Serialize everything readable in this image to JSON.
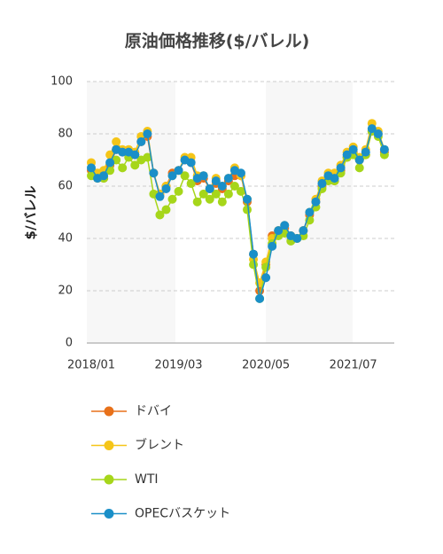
{
  "chart_data": {
    "type": "line",
    "title": "原油価格推移($/バレル)",
    "y_label": "$/バレル",
    "categories": [
      "2018/01",
      null,
      null,
      null,
      null,
      null,
      null,
      null,
      null,
      null,
      null,
      null,
      null,
      null,
      "2019/03",
      null,
      null,
      null,
      null,
      null,
      null,
      null,
      null,
      null,
      null,
      null,
      null,
      null,
      "2020/05",
      null,
      null,
      null,
      null,
      null,
      null,
      null,
      null,
      null,
      null,
      null,
      null,
      null,
      "2021/07",
      null,
      null,
      null,
      null,
      null
    ],
    "series": [
      {
        "name": "ドバイ",
        "color": "#e8711a",
        "values": [
          66,
          63,
          63,
          68,
          74,
          73,
          73,
          72,
          77,
          79,
          65,
          57,
          60,
          65,
          66,
          70,
          69,
          62,
          63,
          59,
          61,
          59,
          62,
          64,
          64,
          54,
          34,
          20,
          30,
          41,
          43,
          44,
          41,
          40,
          43,
          49,
          54,
          60,
          64,
          62,
          66,
          71,
          73,
          70,
          72,
          81,
          80,
          73
        ]
      },
      {
        "name": "ブレント",
        "color": "#f5c518",
        "values": [
          69,
          65,
          66,
          72,
          77,
          74,
          74,
          73,
          79,
          81,
          65,
          57,
          60,
          64,
          66,
          71,
          71,
          64,
          64,
          59,
          63,
          60,
          63,
          67,
          64,
          55,
          32,
          23,
          31,
          40,
          43,
          45,
          41,
          40,
          43,
          50,
          55,
          62,
          65,
          65,
          68,
          73,
          75,
          71,
          74,
          84,
          81,
          74
        ]
      },
      {
        "name": "WTI",
        "color": "#a6d61a",
        "values": [
          64,
          63,
          63,
          66,
          70,
          67,
          71,
          68,
          70,
          71,
          57,
          49,
          51,
          55,
          58,
          64,
          61,
          54,
          57,
          55,
          57,
          54,
          57,
          60,
          58,
          51,
          30,
          17,
          29,
          38,
          41,
          42,
          39,
          40,
          41,
          47,
          52,
          59,
          62,
          62,
          65,
          71,
          72,
          67,
          72,
          81,
          79,
          72
        ]
      },
      {
        "name": "OPECバスケット",
        "color": "#1a8fc8",
        "values": [
          67,
          63,
          64,
          69,
          74,
          73,
          73,
          72,
          77,
          80,
          65,
          56,
          59,
          64,
          66,
          70,
          69,
          63,
          64,
          59,
          62,
          60,
          63,
          66,
          65,
          55,
          34,
          17,
          25,
          37,
          43,
          45,
          41,
          40,
          43,
          50,
          54,
          61,
          64,
          63,
          67,
          72,
          74,
          70,
          73,
          82,
          80,
          74
        ]
      }
    ],
    "ylim": [
      0,
      100
    ],
    "yticks": [
      0,
      20,
      40,
      60,
      80,
      100
    ],
    "grid": true
  }
}
